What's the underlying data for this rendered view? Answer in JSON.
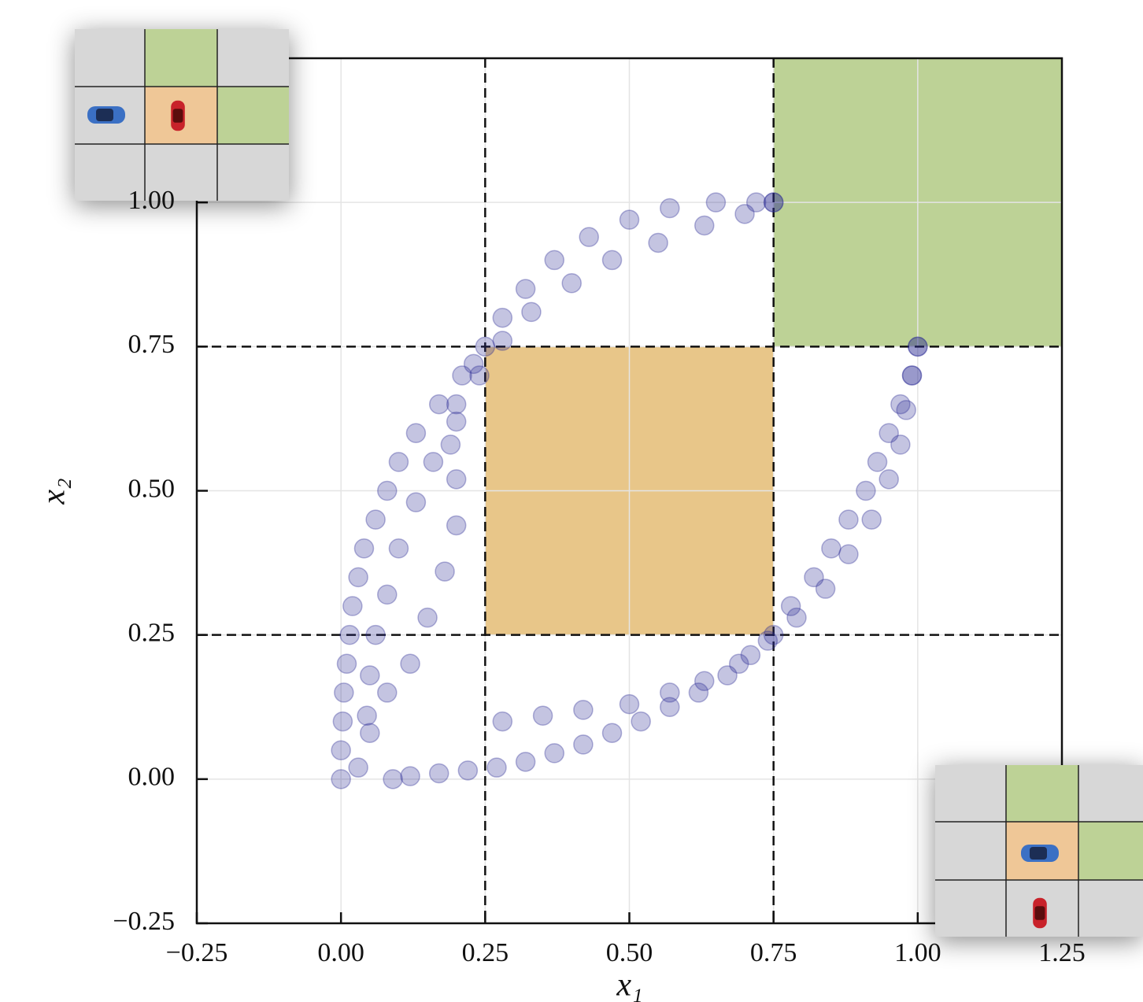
{
  "chart_data": {
    "type": "scatter",
    "x_label": "x₁",
    "y_label": "x₂",
    "xlim": [
      -0.25,
      1.25
    ],
    "ylim": [
      -0.25,
      1.25
    ],
    "xticks": [
      {
        "value": -0.25,
        "label": "−0.25"
      },
      {
        "value": 0,
        "label": "0.00"
      },
      0.25,
      {
        "value": 0.5,
        "label": "0.50"
      },
      0.75,
      {
        "value": 1,
        "label": "1.00"
      },
      1.25
    ],
    "yticks": [
      {
        "value": -0.25,
        "label": "−0.25"
      },
      {
        "value": 0,
        "label": "0.00"
      },
      0.25,
      {
        "value": 0.5,
        "label": "0.50"
      },
      0.75,
      {
        "value": 1,
        "label": "1.00"
      }
    ],
    "grid": true,
    "color": "#2b2b95",
    "regions": [
      {
        "xlim": [
          0.75,
          1.25
        ],
        "ylim": [
          0.75,
          1.25
        ],
        "color": "#bdd296"
      },
      {
        "xlim": [
          0.25,
          0.75
        ],
        "ylim": [
          0.25,
          0.75
        ],
        "color": "#e8c689"
      }
    ],
    "dashed_lines": {
      "x": [
        0.25,
        0.75
      ],
      "y": [
        0.25,
        0.75
      ]
    },
    "series": [
      {
        "x": [
          0,
          0,
          0.003,
          0.005,
          0.01,
          0.015,
          0.02,
          0.03,
          0.04,
          0.06,
          0.08,
          0.1,
          0.13,
          0.17,
          0.21,
          0.25,
          0.28,
          0.32,
          0.37,
          0.43,
          0.5,
          0.57,
          0.65,
          0.72,
          0.75
        ],
        "y": [
          0,
          0.05,
          0.1,
          0.15,
          0.2,
          0.25,
          0.3,
          0.35,
          0.4,
          0.45,
          0.5,
          0.55,
          0.6,
          0.65,
          0.7,
          0.75,
          0.8,
          0.85,
          0.9,
          0.94,
          0.97,
          0.99,
          1.0,
          1.0,
          1.0
        ]
      },
      {
        "x": [
          0.09,
          0.12,
          0.17,
          0.22,
          0.27,
          0.32,
          0.37,
          0.42,
          0.47,
          0.52,
          0.57,
          0.62,
          0.67,
          0.71,
          0.75,
          0.78,
          0.82,
          0.85,
          0.88,
          0.91,
          0.93,
          0.95,
          0.97,
          0.99,
          1.0
        ],
        "y": [
          0,
          0.005,
          0.01,
          0.015,
          0.02,
          0.03,
          0.045,
          0.06,
          0.08,
          0.1,
          0.125,
          0.15,
          0.18,
          0.215,
          0.25,
          0.3,
          0.35,
          0.4,
          0.45,
          0.5,
          0.55,
          0.6,
          0.65,
          0.7,
          0.75
        ]
      },
      {
        "x": [
          0.045,
          0.05,
          0.06,
          0.08,
          0.1,
          0.13,
          0.16,
          0.2,
          0.24,
          0.28,
          0.33,
          0.4,
          0.47,
          0.55,
          0.63,
          0.7,
          0.75
        ],
        "y": [
          0.11,
          0.18,
          0.25,
          0.32,
          0.4,
          0.48,
          0.55,
          0.62,
          0.7,
          0.76,
          0.81,
          0.86,
          0.9,
          0.93,
          0.96,
          0.98,
          1.0
        ]
      },
      {
        "x": [
          0.28,
          0.35,
          0.42,
          0.5,
          0.57,
          0.63,
          0.69,
          0.74,
          0.79,
          0.84,
          0.88,
          0.92,
          0.95,
          0.97,
          0.98,
          0.99,
          1.0
        ],
        "y": [
          0.1,
          0.11,
          0.12,
          0.13,
          0.15,
          0.17,
          0.2,
          0.24,
          0.28,
          0.33,
          0.39,
          0.45,
          0.52,
          0.58,
          0.64,
          0.7,
          0.75
        ]
      },
      {
        "x": [
          0.03,
          0.05,
          0.08,
          0.12,
          0.15,
          0.18,
          0.2,
          0.2,
          0.19,
          0.2,
          0.23
        ],
        "y": [
          0.02,
          0.08,
          0.15,
          0.2,
          0.28,
          0.36,
          0.44,
          0.52,
          0.58,
          0.65,
          0.72
        ]
      }
    ]
  }
}
